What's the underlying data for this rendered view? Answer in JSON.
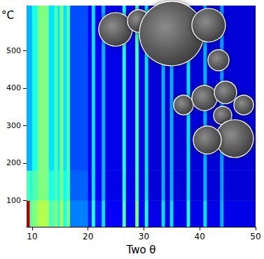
{
  "chart_data": {
    "type": "heatmap",
    "x_label": "Two θ",
    "y_label": "°C",
    "xlim": [
      9,
      50
    ],
    "xticks": [
      10,
      20,
      30,
      40,
      50
    ],
    "ylim": [
      30,
      620
    ],
    "yticks": [
      100,
      200,
      300,
      400,
      500
    ],
    "two_theta_edges": [
      9,
      9.6,
      10,
      11,
      13,
      14,
      14.6,
      15,
      15.6,
      16.2,
      16.8,
      20,
      20.7,
      21.3,
      22.5,
      23.1,
      26.2,
      26.8,
      28.5,
      29.1,
      30.2,
      30.8,
      33.2,
      33.8,
      34.7,
      35.3,
      37.7,
      38.3,
      40.7,
      41.3,
      43.7,
      44.3,
      50
    ],
    "temperature_edges": [
      30,
      100,
      180,
      620
    ],
    "intensity": [
      [
        0.95,
        0.45,
        0.5,
        0.55,
        0.45,
        0.5,
        0.4,
        0.55,
        0.4,
        0.5,
        0.25,
        0.15,
        0.4,
        0.15,
        0.35,
        0.12,
        0.45,
        0.12,
        0.5,
        0.12,
        0.4,
        0.1,
        0.35,
        0.1,
        0.35,
        0.1,
        0.4,
        0.1,
        0.35,
        0.1,
        0.3,
        0.1
      ],
      [
        0.45,
        0.4,
        0.45,
        0.5,
        0.4,
        0.45,
        0.38,
        0.5,
        0.38,
        0.45,
        0.22,
        0.12,
        0.35,
        0.12,
        0.3,
        0.1,
        0.4,
        0.1,
        0.45,
        0.1,
        0.35,
        0.08,
        0.3,
        0.08,
        0.3,
        0.08,
        0.35,
        0.08,
        0.3,
        0.08,
        0.28,
        0.08
      ],
      [
        0.3,
        0.3,
        0.4,
        0.5,
        0.35,
        0.45,
        0.35,
        0.5,
        0.35,
        0.45,
        0.2,
        0.12,
        0.35,
        0.12,
        0.3,
        0.1,
        0.4,
        0.1,
        0.45,
        0.1,
        0.35,
        0.08,
        0.3,
        0.08,
        0.3,
        0.08,
        0.35,
        0.08,
        0.3,
        0.08,
        0.28,
        0.08
      ]
    ],
    "intensity_range": [
      0,
      1
    ]
  }
}
